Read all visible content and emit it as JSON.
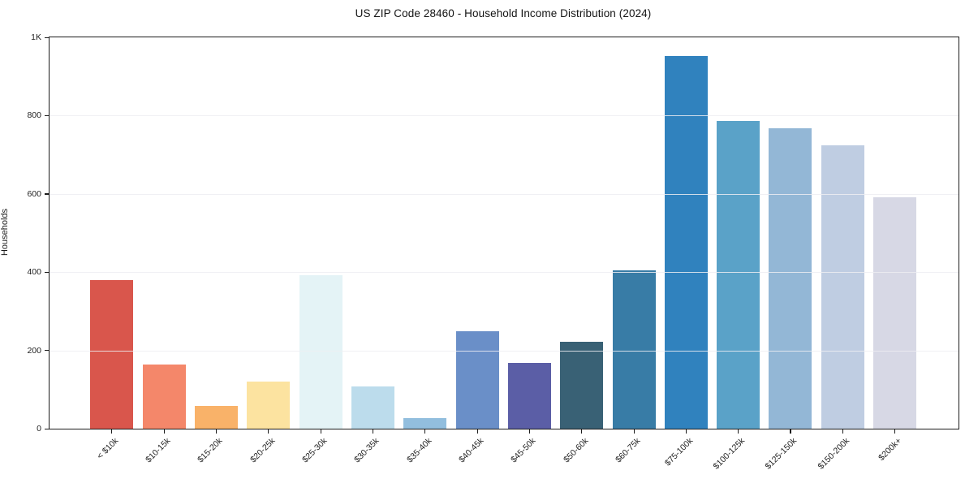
{
  "chart": {
    "title": "US ZIP Code 28460 - Household Income Distribution (2024)",
    "ylabel": "Households"
  },
  "chart_data": {
    "type": "bar",
    "title": "US ZIP Code 28460 - Household Income Distribution (2024)",
    "xlabel": "",
    "ylabel": "Households",
    "categories": [
      "< $10k",
      "$10-15k",
      "$15-20k",
      "$20-25k",
      "$25-30k",
      "$30-35k",
      "$35-40k",
      "$40-45k",
      "$45-50k",
      "$50-60k",
      "$60-75k",
      "$75-100k",
      "$100-125k",
      "$125-150k",
      "$150-200k",
      "$200k+"
    ],
    "values": [
      380,
      163,
      58,
      121,
      392,
      108,
      28,
      250,
      169,
      221,
      404,
      953,
      786,
      767,
      724,
      592
    ],
    "bar_colors": [
      "#d9564c",
      "#f4876a",
      "#f9b269",
      "#fce3a0",
      "#e4f3f6",
      "#bcdcec",
      "#92bede",
      "#6a8fc8",
      "#5b5ea6",
      "#396175",
      "#387ca6",
      "#3082be",
      "#5aa2c8",
      "#93b7d6",
      "#bfcde2",
      "#d7d8e5"
    ],
    "ylim": [
      0,
      1000
    ],
    "yticks": [
      0,
      200,
      400,
      600,
      800,
      1000
    ],
    "ytick_labels": [
      "0",
      "200",
      "400",
      "600",
      "800",
      "1K"
    ],
    "grid": "horizontal",
    "legend": "none",
    "xtick_rotation": 45
  }
}
